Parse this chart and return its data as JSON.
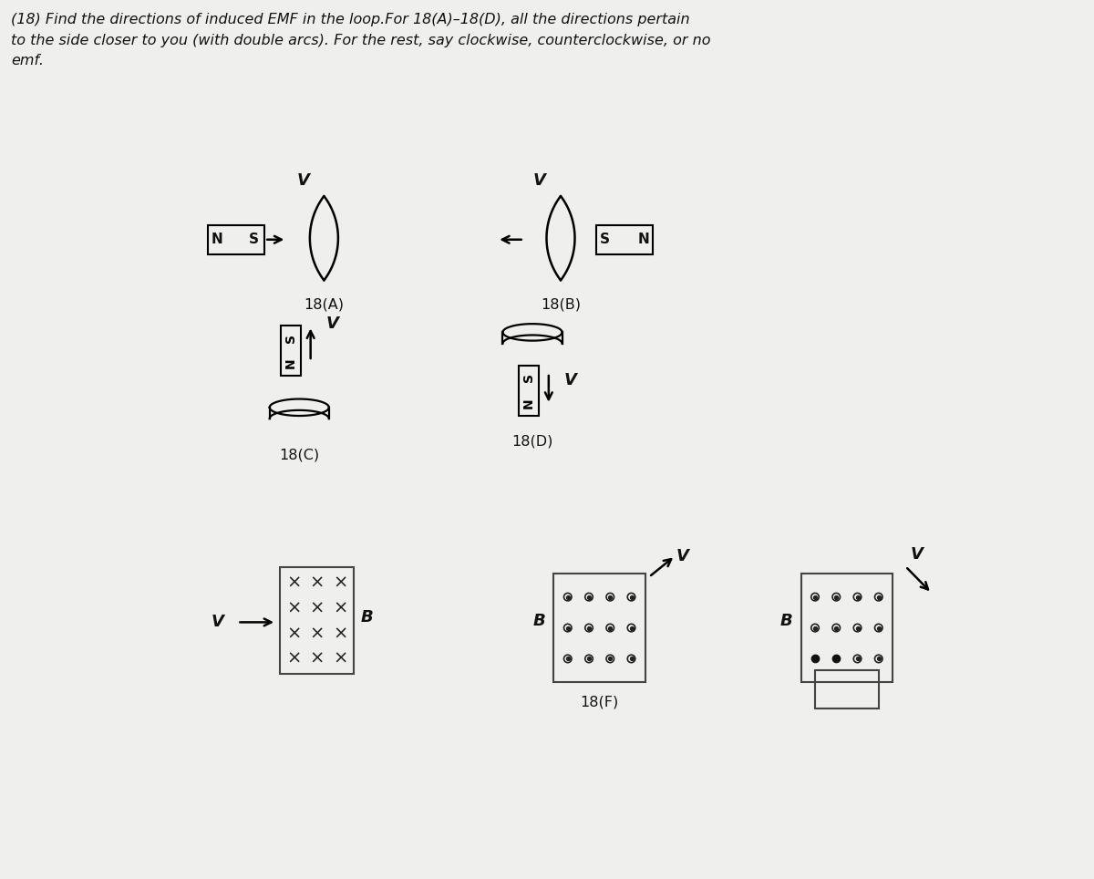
{
  "title_line1": "(18) Find the directions of induced EMF in the loop.For 18(A)–18(D), all the directions pertain",
  "title_line2": "to the side closer to you (with double arcs). For the rest, say clockwise, counterclockwise, or no",
  "title_line3": "emf.",
  "bg_color": "#efefed",
  "text_color": "#111111",
  "lc": "#222222"
}
